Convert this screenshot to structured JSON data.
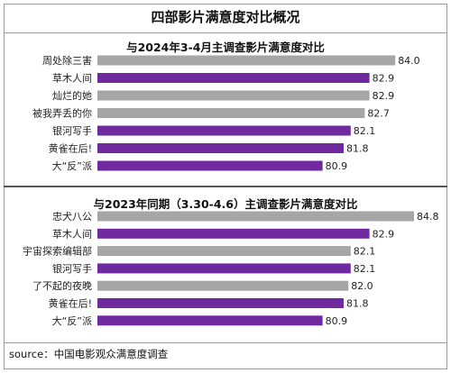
{
  "title": "四部影片满意度对比概况",
  "source": "source：中国电影观众满意度调查",
  "colors": {
    "highlight": "#6f2aa0",
    "other": "#a6a6a6"
  },
  "chart_data": [
    {
      "type": "bar",
      "orientation": "horizontal",
      "title": "与2024年3-4月主调查影片满意度对比",
      "categories": [
        "周处除三害",
        "草木人间",
        "灿烂的她",
        "被我弄丢的你",
        "银河写手",
        "黄雀在后!",
        "大“反”派"
      ],
      "values": [
        84.0,
        82.9,
        82.9,
        82.7,
        82.1,
        81.8,
        80.9
      ],
      "highlight": [
        false,
        true,
        false,
        false,
        true,
        true,
        true
      ],
      "labels": [
        "84.0",
        "82.9",
        "82.9",
        "82.7",
        "82.1",
        "81.8",
        "80.9"
      ]
    },
    {
      "type": "bar",
      "orientation": "horizontal",
      "title": "与2023年同期（3.30-4.6）主调查影片满意度对比",
      "categories": [
        "忠犬八公",
        "草木人间",
        "宇宙探索编辑部",
        "银河写手",
        "了不起的夜晚",
        "黄雀在后!",
        "大“反”派"
      ],
      "values": [
        84.8,
        82.9,
        82.1,
        82.1,
        82.0,
        81.8,
        80.9
      ],
      "highlight": [
        false,
        true,
        false,
        true,
        false,
        true,
        true
      ],
      "labels": [
        "84.8",
        "82.9",
        "82.1",
        "82.1",
        "82.0",
        "81.8",
        "80.9"
      ]
    }
  ]
}
